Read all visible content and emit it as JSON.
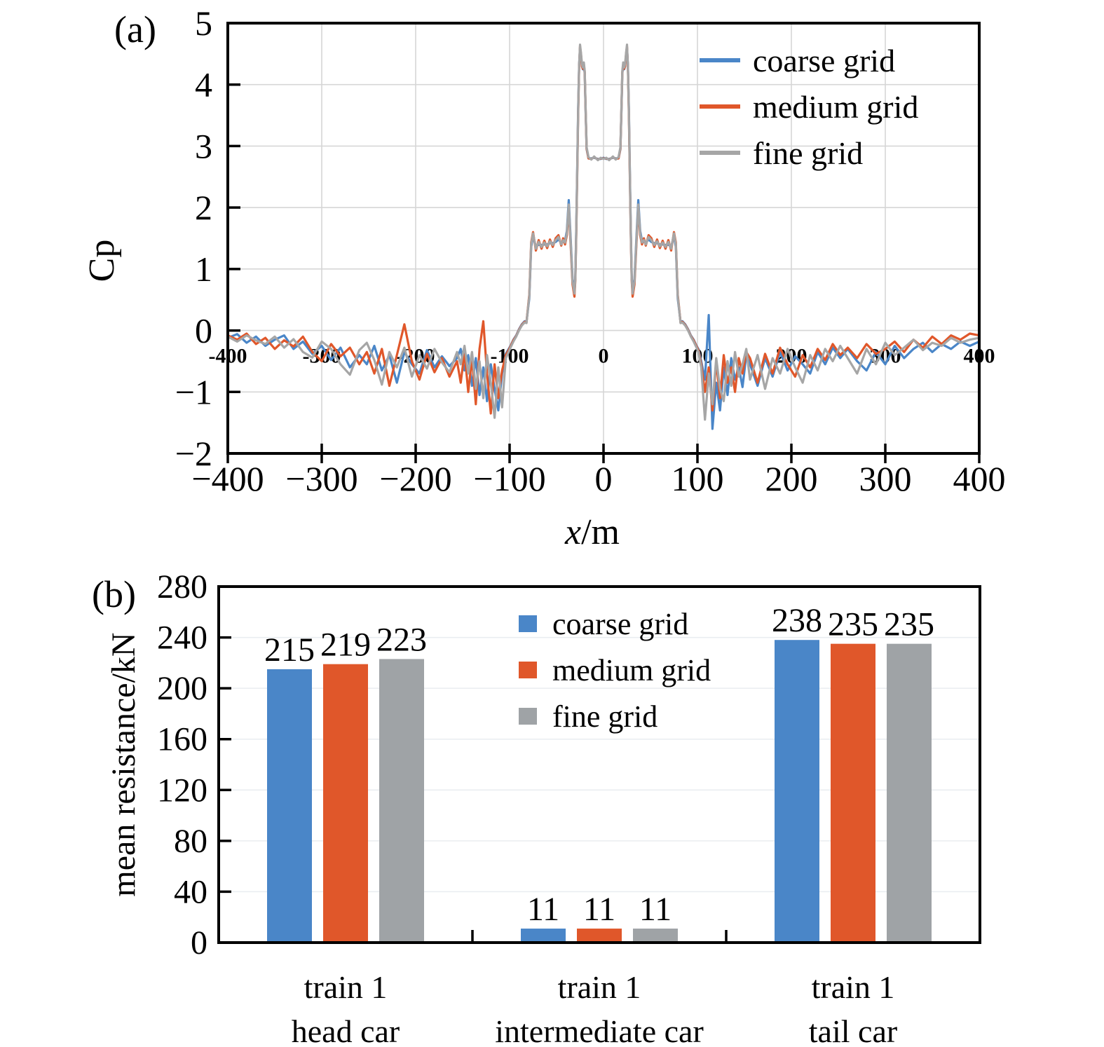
{
  "panel_a": {
    "tag": "(a)",
    "y_axis_label": "Cp",
    "x_axis_label": {
      "var": "x",
      "unit": "/m"
    },
    "y_tick_labels": [
      "5",
      "4",
      "3",
      "2",
      "1",
      "0",
      "−1",
      "−2"
    ],
    "x_tick_labels": [
      "−400",
      "−300",
      "−200",
      "−100",
      "0",
      "100",
      "200",
      "300",
      "400"
    ],
    "inner_x_tick_labels": [
      "-400",
      "-300",
      "-200",
      "-100",
      "0",
      "100",
      "200",
      "300",
      "400"
    ],
    "inner_label_color": "#44546a",
    "legend": [
      "coarse grid",
      "medium grid",
      "fine grid"
    ]
  },
  "panel_b": {
    "tag": "(b)",
    "y_axis_label": "mean resistance/kN",
    "y_tick_labels": [
      "280",
      "240",
      "200",
      "160",
      "120",
      "80",
      "40",
      "0"
    ],
    "legend": [
      "coarse grid",
      "medium grid",
      "fine grid"
    ],
    "categories": [
      {
        "line1": "train 1",
        "line2": "head car"
      },
      {
        "line1": "train 1",
        "line2": "intermediate car"
      },
      {
        "line1": "train 1",
        "line2": "tail car"
      }
    ],
    "bar_labels": [
      [
        "215",
        "219",
        "223"
      ],
      [
        "11",
        "11",
        "11"
      ],
      [
        "238",
        "235",
        "235"
      ]
    ]
  },
  "colors": {
    "coarse": "#4a86c8",
    "medium": "#e0572a",
    "fine": "#9fa3a6",
    "grid_a": "#d6d6d6",
    "grid_b": "#e9edf0",
    "axis": "#000000",
    "inner_labels": "#44546a"
  },
  "chart_data": [
    {
      "type": "line",
      "panel": "a",
      "xlabel": "x/m",
      "ylabel": "Cp",
      "xlim": [
        -400,
        400
      ],
      "ylim": [
        -2,
        5
      ],
      "x_ticks": [
        -400,
        -300,
        -200,
        -100,
        0,
        100,
        200,
        300,
        400
      ],
      "y_ticks": [
        5,
        4,
        3,
        2,
        1,
        0,
        -1,
        -2
      ],
      "grid": true,
      "legend_position": "upper right",
      "x": [
        -400,
        -390,
        -380,
        -370,
        -360,
        -350,
        -340,
        -330,
        -320,
        -310,
        -300,
        -290,
        -280,
        -270,
        -260,
        -252,
        -244,
        -236,
        -228,
        -220,
        -212,
        -204,
        -196,
        -188,
        -180,
        -172,
        -164,
        -156,
        -152,
        -148,
        -144,
        -140,
        -136,
        -132,
        -128,
        -124,
        -120,
        -116,
        -112,
        -108,
        -104,
        -101,
        -99,
        -96,
        -93,
        -90,
        -87,
        -84,
        -82,
        -80,
        -79,
        -77,
        -75,
        -72,
        -69,
        -66,
        -63,
        -60,
        -57,
        -54,
        -51,
        -48,
        -45,
        -43,
        -41,
        -39,
        -37,
        -35,
        -33,
        -31,
        -30,
        -29,
        -28,
        -27,
        -26,
        -25,
        -24,
        -23,
        -22,
        -21,
        -20,
        -19,
        -18,
        -16,
        -13,
        -10,
        -6,
        -3,
        0,
        3,
        6,
        10,
        13,
        16,
        18,
        19,
        20,
        21,
        22,
        23,
        24,
        25,
        26,
        27,
        28,
        29,
        30,
        31,
        33,
        35,
        37,
        39,
        41,
        43,
        45,
        48,
        51,
        54,
        57,
        60,
        63,
        66,
        69,
        72,
        75,
        77,
        79,
        80,
        82,
        84,
        87,
        90,
        93,
        96,
        99,
        101,
        104,
        108,
        112,
        116,
        120,
        124,
        128,
        132,
        136,
        140,
        144,
        148,
        152,
        156,
        164,
        172,
        180,
        188,
        196,
        204,
        212,
        220,
        228,
        236,
        244,
        252,
        260,
        270,
        280,
        290,
        300,
        310,
        320,
        330,
        340,
        350,
        360,
        370,
        380,
        390,
        400
      ],
      "series": [
        {
          "name": "coarse grid",
          "color": "#4a86c8",
          "values": [
            -0.12,
            -0.06,
            -0.2,
            -0.1,
            -0.25,
            -0.15,
            -0.08,
            -0.3,
            -0.18,
            -0.38,
            -0.25,
            -0.48,
            -0.28,
            -0.6,
            -0.4,
            -0.55,
            -0.25,
            -0.65,
            -0.4,
            -0.85,
            -0.35,
            -0.55,
            -0.7,
            -0.32,
            -0.6,
            -0.42,
            -0.58,
            -0.45,
            -0.3,
            -0.65,
            -0.4,
            -0.9,
            -0.45,
            -1.05,
            -0.6,
            -1.15,
            -0.55,
            -0.95,
            -1.3,
            -0.7,
            -0.38,
            -0.3,
            -0.25,
            -0.15,
            -0.08,
            0.02,
            0.1,
            0.15,
            0.14,
            0.4,
            0.52,
            1.36,
            1.54,
            1.36,
            1.4,
            1.39,
            1.4,
            1.4,
            1.42,
            1.42,
            1.44,
            1.48,
            1.43,
            1.44,
            1.46,
            1.62,
            2.12,
            1.5,
            0.84,
            0.62,
            0.88,
            1.65,
            2.65,
            3.6,
            4.32,
            4.6,
            4.48,
            4.3,
            4.25,
            4.32,
            4.18,
            3.55,
            2.95,
            2.8,
            2.8,
            2.81,
            2.79,
            2.79,
            2.81,
            2.79,
            2.79,
            2.81,
            2.8,
            2.8,
            2.95,
            3.55,
            4.18,
            4.32,
            4.25,
            4.3,
            4.48,
            4.6,
            4.32,
            3.6,
            2.65,
            1.65,
            0.88,
            0.62,
            0.84,
            1.5,
            2.12,
            1.62,
            1.46,
            1.44,
            1.43,
            1.48,
            1.44,
            1.42,
            1.42,
            1.4,
            1.4,
            1.39,
            1.4,
            1.36,
            1.54,
            1.36,
            0.52,
            0.4,
            0.14,
            0.15,
            0.1,
            0.02,
            -0.08,
            -0.15,
            -0.25,
            -0.3,
            -0.5,
            -0.8,
            0.25,
            -1.6,
            -0.85,
            -1.3,
            -0.6,
            -1.05,
            -0.45,
            -0.8,
            -0.6,
            -0.92,
            -0.4,
            -0.55,
            -0.9,
            -0.45,
            -0.75,
            -0.35,
            -0.65,
            -0.42,
            -0.55,
            -0.7,
            -0.35,
            -0.55,
            -0.28,
            -0.45,
            -0.3,
            -0.5,
            -0.65,
            -0.35,
            -0.55,
            -0.25,
            -0.45,
            -0.3,
            -0.2,
            -0.35,
            -0.22,
            -0.3,
            -0.18,
            -0.25,
            -0.18
          ]
        },
        {
          "name": "medium grid",
          "color": "#e0572a",
          "values": [
            -0.08,
            -0.15,
            -0.05,
            -0.22,
            -0.12,
            -0.3,
            -0.16,
            -0.26,
            -0.1,
            -0.35,
            -0.5,
            -0.22,
            -0.42,
            -0.28,
            -0.55,
            -0.35,
            -0.7,
            -0.3,
            -0.9,
            -0.4,
            0.1,
            -0.5,
            -0.8,
            -0.38,
            -0.68,
            -0.45,
            -0.75,
            -0.5,
            -0.85,
            -0.35,
            -1.0,
            -0.45,
            -1.2,
            -0.3,
            0.15,
            -0.7,
            -1.35,
            -0.55,
            -1.1,
            -0.65,
            -0.4,
            -0.32,
            -0.26,
            -0.16,
            -0.09,
            0.01,
            0.09,
            0.14,
            0.13,
            0.44,
            0.58,
            1.43,
            1.6,
            1.3,
            1.47,
            1.33,
            1.46,
            1.34,
            1.48,
            1.36,
            1.5,
            1.55,
            1.38,
            1.5,
            1.4,
            1.55,
            2.0,
            1.4,
            0.75,
            0.55,
            0.82,
            1.55,
            2.55,
            3.5,
            4.28,
            4.62,
            4.5,
            4.3,
            4.26,
            4.33,
            4.2,
            3.58,
            2.96,
            2.8,
            2.79,
            2.82,
            2.78,
            2.8,
            2.8,
            2.8,
            2.78,
            2.82,
            2.79,
            2.8,
            2.96,
            3.58,
            4.2,
            4.33,
            4.26,
            4.3,
            4.5,
            4.62,
            4.28,
            3.5,
            2.55,
            1.55,
            0.82,
            0.55,
            0.75,
            1.4,
            2.0,
            1.55,
            1.4,
            1.5,
            1.38,
            1.55,
            1.5,
            1.36,
            1.48,
            1.34,
            1.46,
            1.33,
            1.47,
            1.3,
            1.6,
            1.43,
            0.58,
            0.44,
            0.13,
            0.14,
            0.09,
            0.01,
            -0.09,
            -0.16,
            -0.26,
            -0.32,
            -0.55,
            -1.0,
            -0.6,
            -1.3,
            -0.5,
            -1.1,
            -0.4,
            -0.85,
            -0.6,
            -1.0,
            -0.45,
            -0.7,
            -0.35,
            -0.45,
            -0.85,
            -0.38,
            -0.7,
            -0.28,
            -0.55,
            -0.75,
            -0.4,
            -0.6,
            -0.3,
            -0.48,
            -0.22,
            -0.4,
            -0.28,
            -0.45,
            -0.22,
            -0.38,
            -0.3,
            -0.18,
            -0.35,
            -0.15,
            -0.28,
            -0.1,
            -0.22,
            -0.08,
            -0.15,
            -0.05,
            -0.08
          ]
        },
        {
          "name": "fine grid",
          "color": "#a6a6a6",
          "values": [
            -0.1,
            -0.18,
            -0.08,
            -0.16,
            -0.22,
            -0.1,
            -0.28,
            -0.14,
            -0.35,
            -0.44,
            -0.18,
            -0.3,
            -0.55,
            -0.72,
            -0.32,
            -0.2,
            -0.48,
            -0.88,
            -0.35,
            -0.6,
            -0.28,
            -0.75,
            -0.4,
            -0.62,
            -0.3,
            -0.52,
            -0.68,
            -0.35,
            -0.55,
            -0.25,
            -0.7,
            -0.35,
            -0.95,
            -0.5,
            -1.1,
            -0.4,
            -0.85,
            -1.42,
            -0.6,
            -1.25,
            -0.45,
            -0.35,
            -0.28,
            -0.18,
            -0.1,
            0.0,
            0.08,
            0.13,
            0.12,
            0.42,
            0.55,
            1.4,
            1.58,
            1.33,
            1.44,
            1.36,
            1.43,
            1.37,
            1.45,
            1.39,
            1.47,
            1.52,
            1.4,
            1.47,
            1.43,
            1.58,
            2.05,
            1.45,
            0.8,
            0.6,
            0.85,
            1.6,
            2.6,
            3.55,
            4.3,
            4.65,
            4.52,
            4.34,
            4.28,
            4.36,
            4.22,
            3.6,
            2.98,
            2.82,
            2.78,
            2.83,
            2.77,
            2.81,
            2.79,
            2.81,
            2.77,
            2.83,
            2.78,
            2.82,
            2.98,
            3.6,
            4.22,
            4.36,
            4.28,
            4.34,
            4.52,
            4.65,
            4.3,
            3.55,
            2.6,
            1.6,
            0.85,
            0.6,
            0.8,
            1.45,
            2.05,
            1.58,
            1.43,
            1.47,
            1.4,
            1.52,
            1.47,
            1.39,
            1.45,
            1.37,
            1.43,
            1.36,
            1.44,
            1.33,
            1.58,
            1.4,
            0.55,
            0.42,
            0.12,
            0.13,
            0.08,
            0.0,
            -0.1,
            -0.18,
            -0.28,
            -0.35,
            -0.6,
            -1.45,
            -0.7,
            -1.2,
            -0.45,
            -0.95,
            -1.15,
            -0.5,
            -0.9,
            -0.35,
            -0.75,
            -0.55,
            -0.3,
            -0.8,
            -0.4,
            -0.95,
            -0.45,
            -0.7,
            -0.3,
            -0.6,
            -0.85,
            -0.4,
            -0.65,
            -0.3,
            -0.5,
            -0.25,
            -0.45,
            -0.7,
            -0.3,
            -0.55,
            -0.2,
            -0.4,
            -0.28,
            -0.15,
            -0.32,
            -0.2,
            -0.25,
            -0.12,
            -0.2,
            -0.15,
            -0.12
          ]
        }
      ]
    },
    {
      "type": "bar",
      "panel": "b",
      "ylabel": "mean resistance/kN",
      "ylim": [
        0,
        280
      ],
      "ytick_step": 40,
      "grid": true,
      "legend_position": "upper center",
      "categories": [
        "train 1 head car",
        "train 1 intermediate car",
        "train 1 tail car"
      ],
      "series": [
        {
          "name": "coarse grid",
          "color": "#4a86c8",
          "values": [
            215,
            11,
            238
          ]
        },
        {
          "name": "medium grid",
          "color": "#e0572a",
          "values": [
            219,
            11,
            235
          ]
        },
        {
          "name": "fine grid",
          "color": "#9fa3a6",
          "values": [
            223,
            11,
            235
          ]
        }
      ]
    }
  ]
}
